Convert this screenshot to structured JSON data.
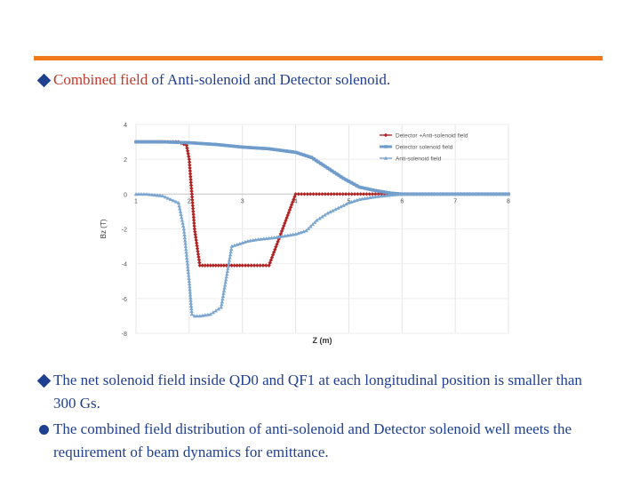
{
  "slide": {
    "bullet1": {
      "red_part": "Combined field",
      "rest": " of Anti-solenoid and Detector solenoid."
    },
    "bullet2": "The net solenoid field inside QD0 and QF1 at each longitudinal position is smaller than 300 Gs.",
    "bullet3": "The combined field distribution of anti-solenoid and Detector solenoid well meets the requirement of beam dynamics for emittance.",
    "accent_color": "#f07a1a",
    "text_color": "#1f3f8f"
  },
  "chart_data": {
    "type": "line",
    "xlabel": "Z (m)",
    "ylabel": "Bz (T)",
    "xlim": [
      1,
      8
    ],
    "ylim": [
      -6,
      4
    ],
    "xticks": [
      "1",
      "2",
      "3",
      "4",
      "5",
      "6",
      "7",
      "8"
    ],
    "yticks": [
      "4",
      "2",
      "0",
      "-2",
      "-4",
      "-6",
      "-8"
    ],
    "grid": true,
    "legend": "top-right",
    "series": [
      {
        "name": "Detector +Anti-solenoid field",
        "color": "#b22222",
        "marker": "diamond",
        "x": [
          1.0,
          1.3,
          1.6,
          1.8,
          1.95,
          2.0,
          2.05,
          2.1,
          2.2,
          2.4,
          2.7,
          3.0,
          3.5,
          4.0,
          4.5,
          5.0,
          5.5,
          6.0,
          6.5,
          7.0,
          7.5,
          8.0
        ],
        "y": [
          3.0,
          3.0,
          3.0,
          3.0,
          2.8,
          2.0,
          0.0,
          -2.0,
          -4.1,
          -4.1,
          -4.1,
          -4.1,
          -4.1,
          0.0,
          0.0,
          0.0,
          0.0,
          0.0,
          0.0,
          0.0,
          0.0,
          0.0
        ]
      },
      {
        "name": "Detector solenoid field",
        "color": "#6f9ccb",
        "marker": "square",
        "x": [
          1.0,
          1.5,
          2.0,
          2.5,
          3.0,
          3.5,
          4.0,
          4.3,
          4.6,
          4.9,
          5.2,
          5.5,
          5.8,
          6.0,
          6.5,
          7.0,
          7.5,
          8.0
        ],
        "y": [
          3.0,
          3.0,
          2.95,
          2.85,
          2.7,
          2.6,
          2.4,
          2.1,
          1.5,
          0.9,
          0.4,
          0.2,
          0.05,
          0.0,
          0.0,
          0.0,
          0.0,
          0.0
        ]
      },
      {
        "name": "Anti-solenoid field",
        "color": "#7aa6d0",
        "marker": "triangle",
        "x": [
          1.0,
          1.2,
          1.5,
          1.8,
          1.9,
          2.0,
          2.05,
          2.1,
          2.2,
          2.4,
          2.6,
          2.8,
          3.0,
          3.1,
          3.3,
          3.6,
          3.8,
          4.0,
          4.2,
          4.4,
          4.6,
          4.8,
          5.0,
          5.2,
          5.5,
          5.8,
          6.0,
          6.5,
          7.0,
          7.5,
          8.0
        ],
        "y": [
          0.0,
          0.0,
          -0.1,
          -0.5,
          -2.0,
          -5.0,
          -6.9,
          -7.0,
          -7.0,
          -6.9,
          -6.5,
          -3.0,
          -2.8,
          -2.7,
          -2.6,
          -2.5,
          -2.4,
          -2.3,
          -2.1,
          -1.5,
          -1.1,
          -0.8,
          -0.5,
          -0.3,
          -0.15,
          -0.05,
          0.0,
          0.0,
          0.0,
          0.0,
          0.0
        ]
      }
    ]
  }
}
